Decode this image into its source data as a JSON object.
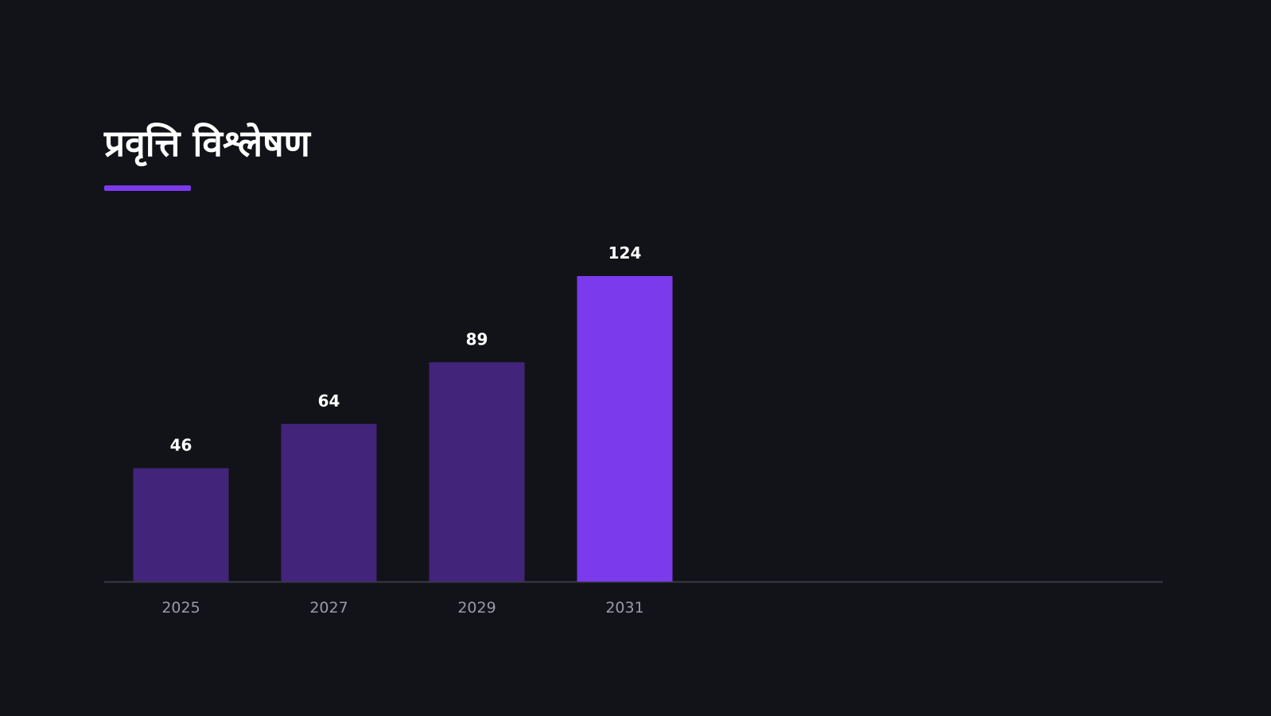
{
  "title": "प्रवृत्ति विश्लेषण",
  "colors": {
    "background": "#121318",
    "accent": "#7c3aed",
    "bar_muted": "#42247a",
    "baseline": "#3a3a44",
    "title": "#ffffff",
    "value_label": "#ffffff",
    "tick_label": "#9a9aa6"
  },
  "chart_data": {
    "type": "bar",
    "categories": [
      "2025",
      "2027",
      "2029",
      "2031"
    ],
    "values": [
      46,
      64,
      89,
      124
    ],
    "highlighted_category": "2031",
    "title": "प्रवृत्ति विश्लेषण",
    "xlabel": "",
    "ylabel": "",
    "ylim": [
      0,
      124
    ],
    "grid": false,
    "legend": "none",
    "value_labels": true
  }
}
